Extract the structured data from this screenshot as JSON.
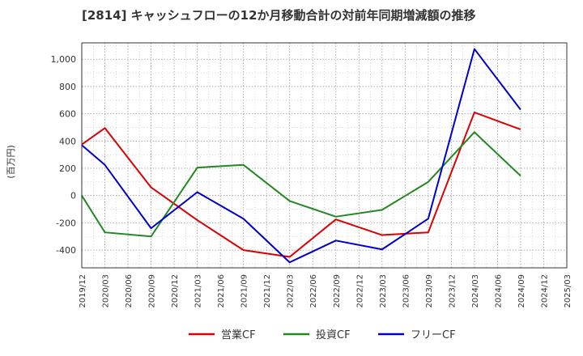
{
  "chart_data": {
    "type": "line",
    "title": "[2814]  キャッシュフローの12か月移動合計の対前年同期増減額の推移",
    "ylabel": "(百万円)",
    "xlabel": "",
    "ylim": [
      -530,
      1120
    ],
    "yticks": [
      -400,
      -200,
      0,
      200,
      400,
      600,
      800,
      1000
    ],
    "ytick_labels": [
      "-400",
      "-200",
      "0",
      "200",
      "400",
      "600",
      "800",
      "1,000"
    ],
    "x_categories": [
      "2019/12",
      "2020/03",
      "2020/06",
      "2020/09",
      "2020/12",
      "2021/03",
      "2021/06",
      "2021/09",
      "2021/12",
      "2022/03",
      "2022/06",
      "2022/09",
      "2022/12",
      "2023/03",
      "2023/06",
      "2023/09",
      "2023/12",
      "2024/03",
      "2024/06",
      "2024/09",
      "2024/12",
      "2025/03"
    ],
    "grid": true,
    "legend_position": "bottom",
    "series": [
      {
        "name": "営業CF",
        "color": "#dd0000",
        "points": [
          {
            "x": "2019/12",
            "y": 375
          },
          {
            "x": "2020/03",
            "y": 495
          },
          {
            "x": "2020/09",
            "y": 60
          },
          {
            "x": "2021/03",
            "y": -180
          },
          {
            "x": "2021/09",
            "y": -400
          },
          {
            "x": "2022/03",
            "y": -450
          },
          {
            "x": "2022/09",
            "y": -175
          },
          {
            "x": "2023/03",
            "y": -290
          },
          {
            "x": "2023/09",
            "y": -270
          },
          {
            "x": "2024/03",
            "y": 610
          },
          {
            "x": "2024/09",
            "y": 485
          }
        ]
      },
      {
        "name": "投資CF",
        "color": "#228822",
        "points": [
          {
            "x": "2019/12",
            "y": 0
          },
          {
            "x": "2020/03",
            "y": -270
          },
          {
            "x": "2020/09",
            "y": -300
          },
          {
            "x": "2021/03",
            "y": 205
          },
          {
            "x": "2021/09",
            "y": 225
          },
          {
            "x": "2022/03",
            "y": -40
          },
          {
            "x": "2022/09",
            "y": -155
          },
          {
            "x": "2023/03",
            "y": -105
          },
          {
            "x": "2023/09",
            "y": 100
          },
          {
            "x": "2024/03",
            "y": 465
          },
          {
            "x": "2024/09",
            "y": 145
          }
        ]
      },
      {
        "name": "フリーCF",
        "color": "#0000cc",
        "points": [
          {
            "x": "2019/12",
            "y": 370
          },
          {
            "x": "2020/03",
            "y": 225
          },
          {
            "x": "2020/09",
            "y": -240
          },
          {
            "x": "2021/03",
            "y": 25
          },
          {
            "x": "2021/09",
            "y": -170
          },
          {
            "x": "2022/03",
            "y": -490
          },
          {
            "x": "2022/09",
            "y": -330
          },
          {
            "x": "2023/03",
            "y": -395
          },
          {
            "x": "2023/09",
            "y": -170
          },
          {
            "x": "2024/03",
            "y": 1075
          },
          {
            "x": "2024/09",
            "y": 630
          }
        ]
      }
    ]
  }
}
